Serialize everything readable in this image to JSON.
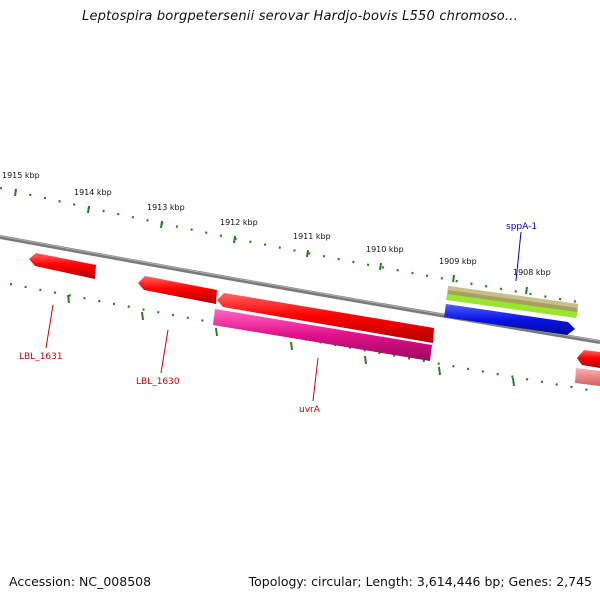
{
  "title": "Leptospira borgpetersenii serovar Hardjo-bovis L550 chromoso...",
  "footer": {
    "accession": "Accession: NC_008508",
    "summary": "Topology: circular; Length: 3,614,446 bp; Genes: 2,745"
  },
  "ruler": {
    "labels": [
      "1915 kbp",
      "1914 kbp",
      "1913 kbp",
      "1912 kbp",
      "1911 kbp",
      "1910 kbp",
      "1909 kbp",
      "1908 kbp"
    ]
  },
  "genes": [
    {
      "name": "LBL_1631",
      "color": "#cc0000"
    },
    {
      "name": "LBL_1630",
      "color": "#cc0000"
    },
    {
      "name": "uvrA",
      "color": "#cc0000"
    },
    {
      "name": "sppA-1",
      "color": "#0000cc"
    }
  ],
  "colors": {
    "backbone": "#808080",
    "ticks": "#2a7a2a",
    "gene_red": "#ff0000",
    "gene_magenta": "#e0108a",
    "gene_blue": "#0a14e6",
    "gene_green": "#99e62e",
    "gene_olive": "#a8a060"
  }
}
